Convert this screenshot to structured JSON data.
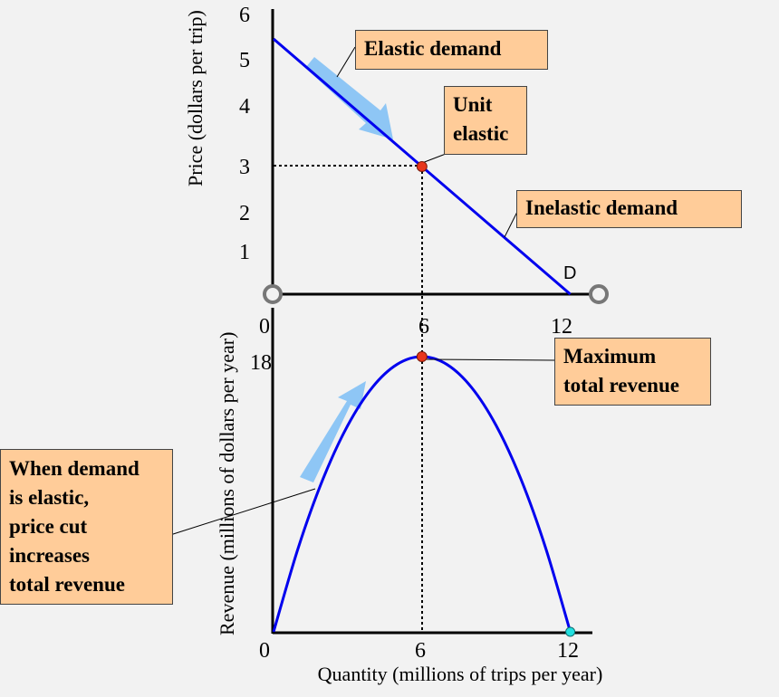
{
  "chart_data": [
    {
      "type": "line",
      "ylabel": "Price (dollars per trip)",
      "x_ticks": [
        0,
        6,
        12
      ],
      "y_ticks": [
        1,
        2,
        3,
        4,
        5,
        6
      ],
      "xlim": [
        0,
        12
      ],
      "ylim": [
        0,
        6
      ],
      "series": [
        {
          "name": "D",
          "x": [
            0,
            12
          ],
          "y": [
            6,
            0
          ],
          "color": "#0000ee"
        }
      ],
      "points": [
        {
          "x": 6,
          "y": 3,
          "color": "#e8361c"
        }
      ],
      "annotations": [
        "Elastic demand",
        "Unit elastic",
        "Inelastic demand"
      ]
    },
    {
      "type": "line",
      "xlabel": "Quantity (millions of trips per year)",
      "ylabel": "Revenue (millions of dollars per year)",
      "x_ticks": [
        0,
        6,
        12
      ],
      "y_ticks": [
        18
      ],
      "xlim": [
        0,
        12
      ],
      "ylim": [
        0,
        18
      ],
      "series": [
        {
          "x": [
            0,
            1,
            2,
            3,
            4,
            5,
            6,
            7,
            8,
            9,
            10,
            11,
            12
          ],
          "y": [
            0,
            5.5,
            10,
            13.5,
            16,
            17.5,
            18,
            17.5,
            16,
            13.5,
            10,
            5.5,
            0
          ],
          "color": "#0000ee"
        }
      ],
      "points": [
        {
          "x": 6,
          "y": 18,
          "color": "#e8361c"
        },
        {
          "x": 12,
          "y": 0,
          "color": "#22e0e0"
        }
      ],
      "annotations": [
        "Maximum total revenue",
        "When demand is elastic, price cut increases total revenue"
      ]
    }
  ],
  "labels": {
    "curve_name": "D",
    "elastic": "Elastic demand",
    "unit_line1": "Unit",
    "unit_line2": "elastic",
    "inelastic": "Inelastic demand",
    "max_line1": "Maximum",
    "max_line2": "total revenue",
    "when_line1": "When demand",
    "when_line2": "is elastic,",
    "when_line3": "price cut",
    "when_line4": "increases",
    "when_line5": "total revenue"
  },
  "colors": {
    "curve": "#0000ee",
    "callout_fill": "#ffcc99",
    "arrow": "#8ec6f5",
    "unit_point": "#e8361c",
    "end_point": "#22e0e0"
  }
}
